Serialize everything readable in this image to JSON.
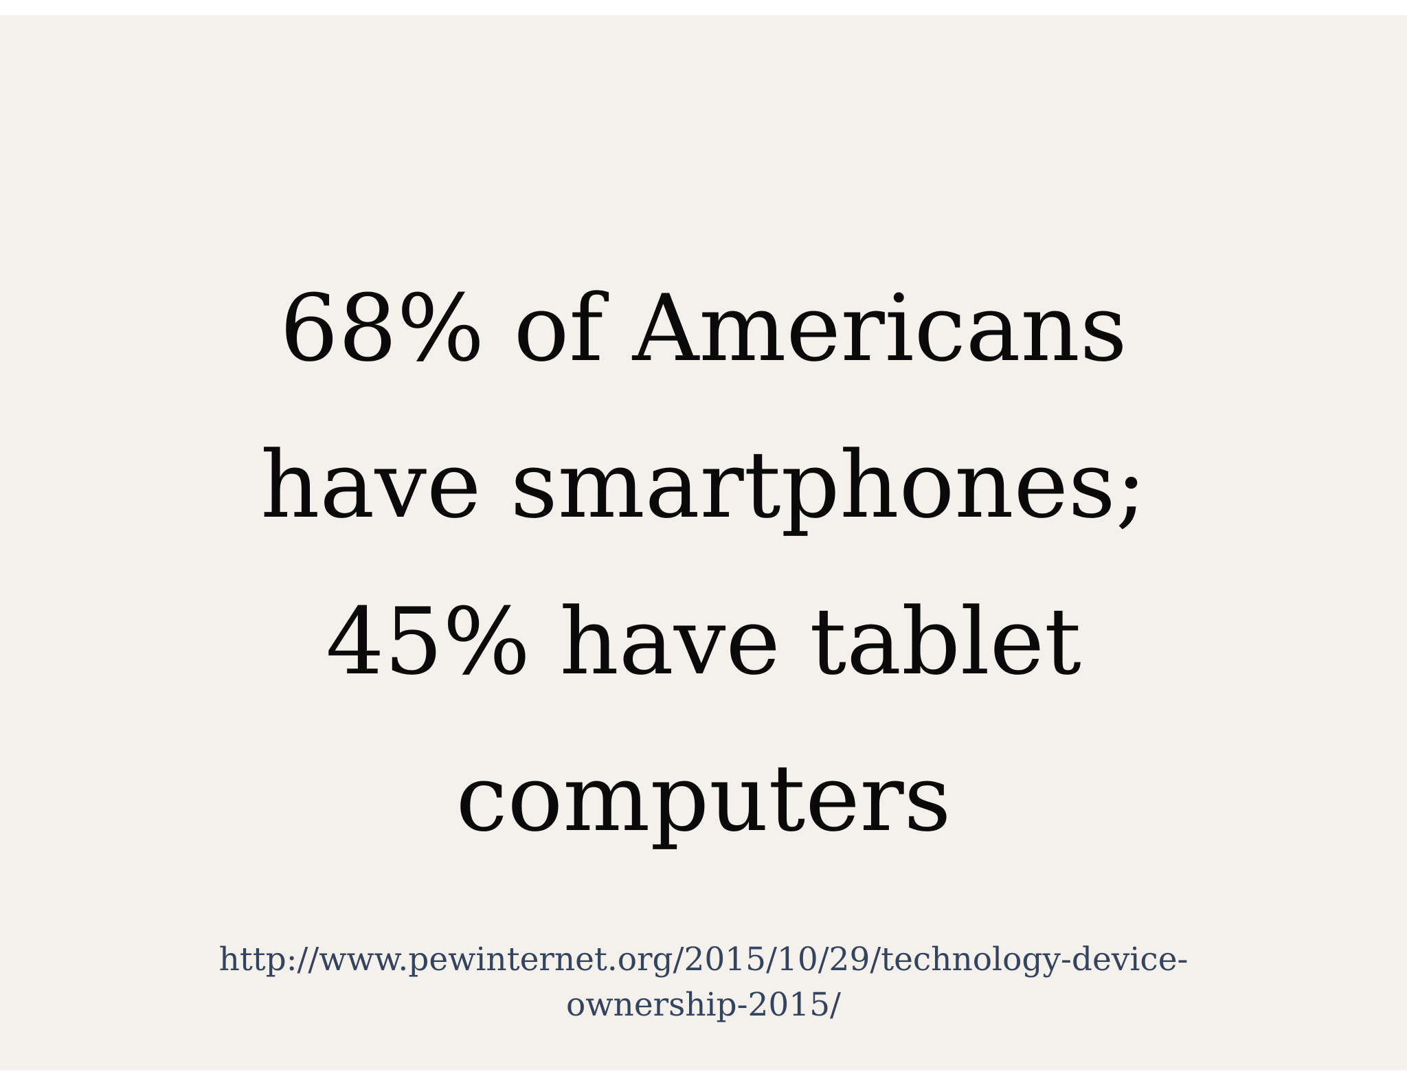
{
  "slide": {
    "headline_lines": [
      "68% of Americans",
      "have smartphones;",
      "45% have tablet",
      "computers"
    ],
    "source_lines": [
      "http://www.pewinternet.org/2015/10/29/technology-device-",
      "ownership-2015/"
    ],
    "colors": {
      "background": "#f4f1ec",
      "headline_text": "#0a0a0a",
      "source_text": "#34435e"
    }
  }
}
